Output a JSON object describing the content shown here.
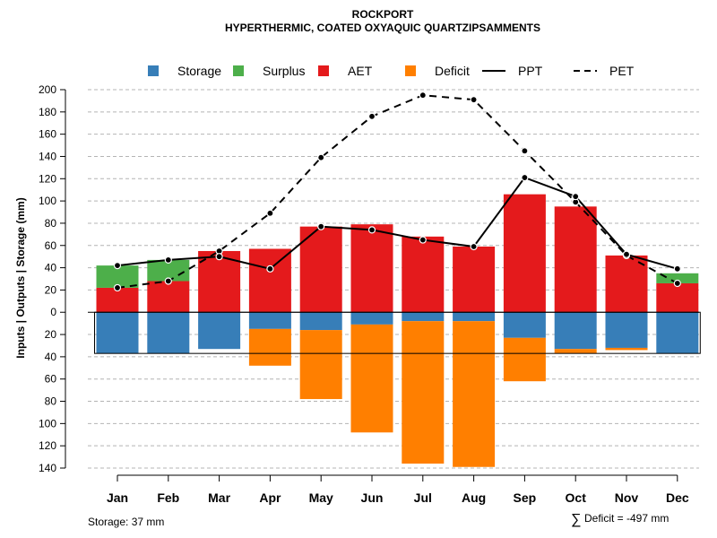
{
  "chart_data": {
    "type": "bar",
    "title": "ROCKPORT",
    "subtitle": "HYPERTHERMIC, COATED OXYAQUIC QUARTZIPSAMMENTS",
    "ylabel": "Inputs | Outputs | Storage     (mm)",
    "ylim": [
      -140,
      200
    ],
    "y_ticks": [
      200,
      180,
      160,
      140,
      120,
      100,
      80,
      60,
      40,
      20,
      0,
      -20,
      -40,
      -60,
      -80,
      -100,
      -120,
      -140
    ],
    "y_tick_labels": [
      "200",
      "180",
      "160",
      "140",
      "120",
      "100",
      "80",
      "60",
      "40",
      "20",
      "0",
      "20",
      "40",
      "60",
      "80",
      "100",
      "120",
      "140"
    ],
    "categories": [
      "Jan",
      "Feb",
      "Mar",
      "Apr",
      "May",
      "Jun",
      "Jul",
      "Aug",
      "Sep",
      "Oct",
      "Nov",
      "Dec"
    ],
    "legend": [
      {
        "name": "Storage",
        "kind": "box",
        "color": "#377eb8"
      },
      {
        "name": "Surplus",
        "kind": "box",
        "color": "#4daf4a"
      },
      {
        "name": "AET",
        "kind": "box",
        "color": "#e41a1c"
      },
      {
        "name": "Deficit",
        "kind": "box",
        "color": "#ff7f00"
      },
      {
        "name": "PPT",
        "kind": "solid-line",
        "color": "#000000"
      },
      {
        "name": "PET",
        "kind": "dashed-line",
        "color": "#000000"
      }
    ],
    "series": [
      {
        "name": "AET",
        "color": "#e41a1c",
        "values": [
          22,
          28,
          55,
          57,
          77,
          79,
          68,
          59,
          106,
          95,
          51,
          26
        ]
      },
      {
        "name": "Surplus",
        "color": "#4daf4a",
        "values": [
          20,
          19,
          0,
          0,
          0,
          0,
          0,
          0,
          0,
          0,
          0,
          9
        ]
      },
      {
        "name": "Storage",
        "color": "#377eb8",
        "values": [
          37,
          37,
          33,
          15,
          16,
          11,
          8,
          8,
          23,
          33,
          32,
          37
        ]
      },
      {
        "name": "Deficit",
        "color": "#ff7f00",
        "values": [
          0,
          0,
          0,
          33,
          62,
          97,
          128,
          131,
          39,
          4,
          2,
          0
        ]
      },
      {
        "name": "PPT",
        "color": "#000000",
        "values": [
          42,
          47,
          50,
          39,
          77,
          74,
          65,
          59,
          121,
          104,
          52,
          39
        ]
      },
      {
        "name": "PET",
        "color": "#000000",
        "values": [
          22,
          28,
          55,
          89,
          139,
          176,
          195,
          191,
          145,
          99,
          51,
          26
        ]
      }
    ],
    "storage_capacity": 37
  },
  "footer": {
    "storage_note": "Storage: 37 mm",
    "deficit_symbol": "∑",
    "deficit_note": "Deficit = -497 mm"
  }
}
